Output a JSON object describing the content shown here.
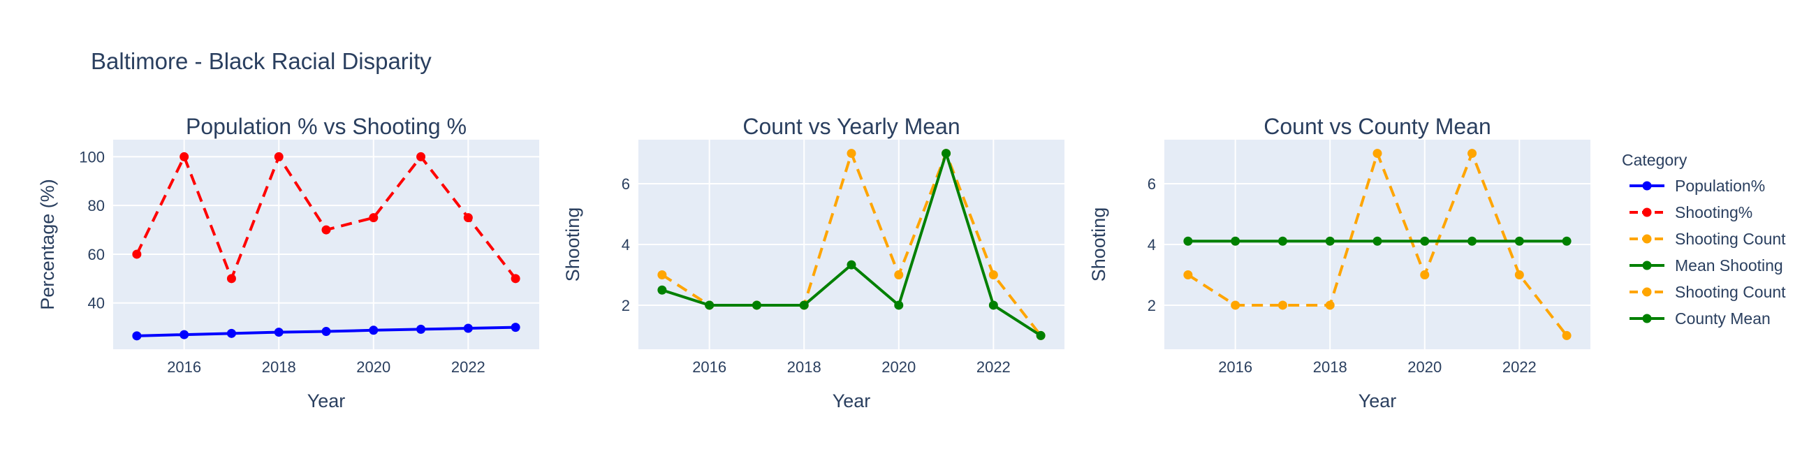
{
  "title": "Baltimore - Black Racial Disparity",
  "colors": {
    "blue": "#0000ff",
    "red": "#ff0000",
    "orange": "#ffa500",
    "green": "#008000",
    "plot_bg": "#e5ecf6",
    "grid": "#ffffff",
    "text": "#2a3f5f"
  },
  "legend": {
    "title": "Category",
    "items": [
      {
        "label": "Population%",
        "color": "#0000ff",
        "dash": false
      },
      {
        "label": "Shooting%",
        "color": "#ff0000",
        "dash": true
      },
      {
        "label": "Shooting Count",
        "color": "#ffa500",
        "dash": true
      },
      {
        "label": "Mean Shooting",
        "color": "#008000",
        "dash": false
      },
      {
        "label": "Shooting Count",
        "color": "#ffa500",
        "dash": true
      },
      {
        "label": "County Mean",
        "color": "#008000",
        "dash": false
      }
    ]
  },
  "chart_data": [
    {
      "type": "line",
      "title": "Population % vs Shooting %",
      "xlabel": "Year",
      "ylabel": "Percentage (%)",
      "xlim": [
        2014.5,
        2023.5
      ],
      "ylim": [
        21,
        107
      ],
      "xticks": [
        2016,
        2018,
        2020,
        2022
      ],
      "yticks": [
        40,
        60,
        80,
        100
      ],
      "x": [
        2015,
        2016,
        2017,
        2018,
        2019,
        2020,
        2021,
        2022,
        2023
      ],
      "series": [
        {
          "name": "Population%",
          "color": "#0000ff",
          "dash": false,
          "values": [
            26.5,
            27.0,
            27.5,
            28.0,
            28.3,
            28.8,
            29.2,
            29.6,
            30.0
          ]
        },
        {
          "name": "Shooting%",
          "color": "#ff0000",
          "dash": true,
          "values": [
            60,
            100,
            50,
            100,
            70,
            75,
            100,
            75,
            50
          ]
        }
      ]
    },
    {
      "type": "line",
      "title": "Count vs Yearly Mean",
      "xlabel": "Year",
      "ylabel": "Shooting",
      "xlim": [
        2014.5,
        2023.5
      ],
      "ylim": [
        0.55,
        7.45
      ],
      "xticks": [
        2016,
        2018,
        2020,
        2022
      ],
      "yticks": [
        2,
        4,
        6
      ],
      "x": [
        2015,
        2016,
        2017,
        2018,
        2019,
        2020,
        2021,
        2022,
        2023
      ],
      "series": [
        {
          "name": "Shooting Count",
          "color": "#ffa500",
          "dash": true,
          "values": [
            3,
            2,
            2,
            2,
            7,
            3,
            7,
            3,
            1
          ]
        },
        {
          "name": "Mean Shooting",
          "color": "#008000",
          "dash": false,
          "values": [
            2.5,
            2,
            2,
            2,
            3.33,
            2,
            7,
            2,
            1
          ]
        }
      ]
    },
    {
      "type": "line",
      "title": "Count vs County Mean",
      "xlabel": "Year",
      "ylabel": "Shooting",
      "xlim": [
        2014.5,
        2023.5
      ],
      "ylim": [
        0.55,
        7.45
      ],
      "xticks": [
        2016,
        2018,
        2020,
        2022
      ],
      "yticks": [
        2,
        4,
        6
      ],
      "x": [
        2015,
        2016,
        2017,
        2018,
        2019,
        2020,
        2021,
        2022,
        2023
      ],
      "series": [
        {
          "name": "Shooting Count",
          "color": "#ffa500",
          "dash": true,
          "values": [
            3,
            2,
            2,
            2,
            7,
            3,
            7,
            3,
            1
          ]
        },
        {
          "name": "County Mean",
          "color": "#008000",
          "dash": false,
          "values": [
            4.11,
            4.11,
            4.11,
            4.11,
            4.11,
            4.11,
            4.11,
            4.11,
            4.11
          ]
        }
      ]
    }
  ]
}
